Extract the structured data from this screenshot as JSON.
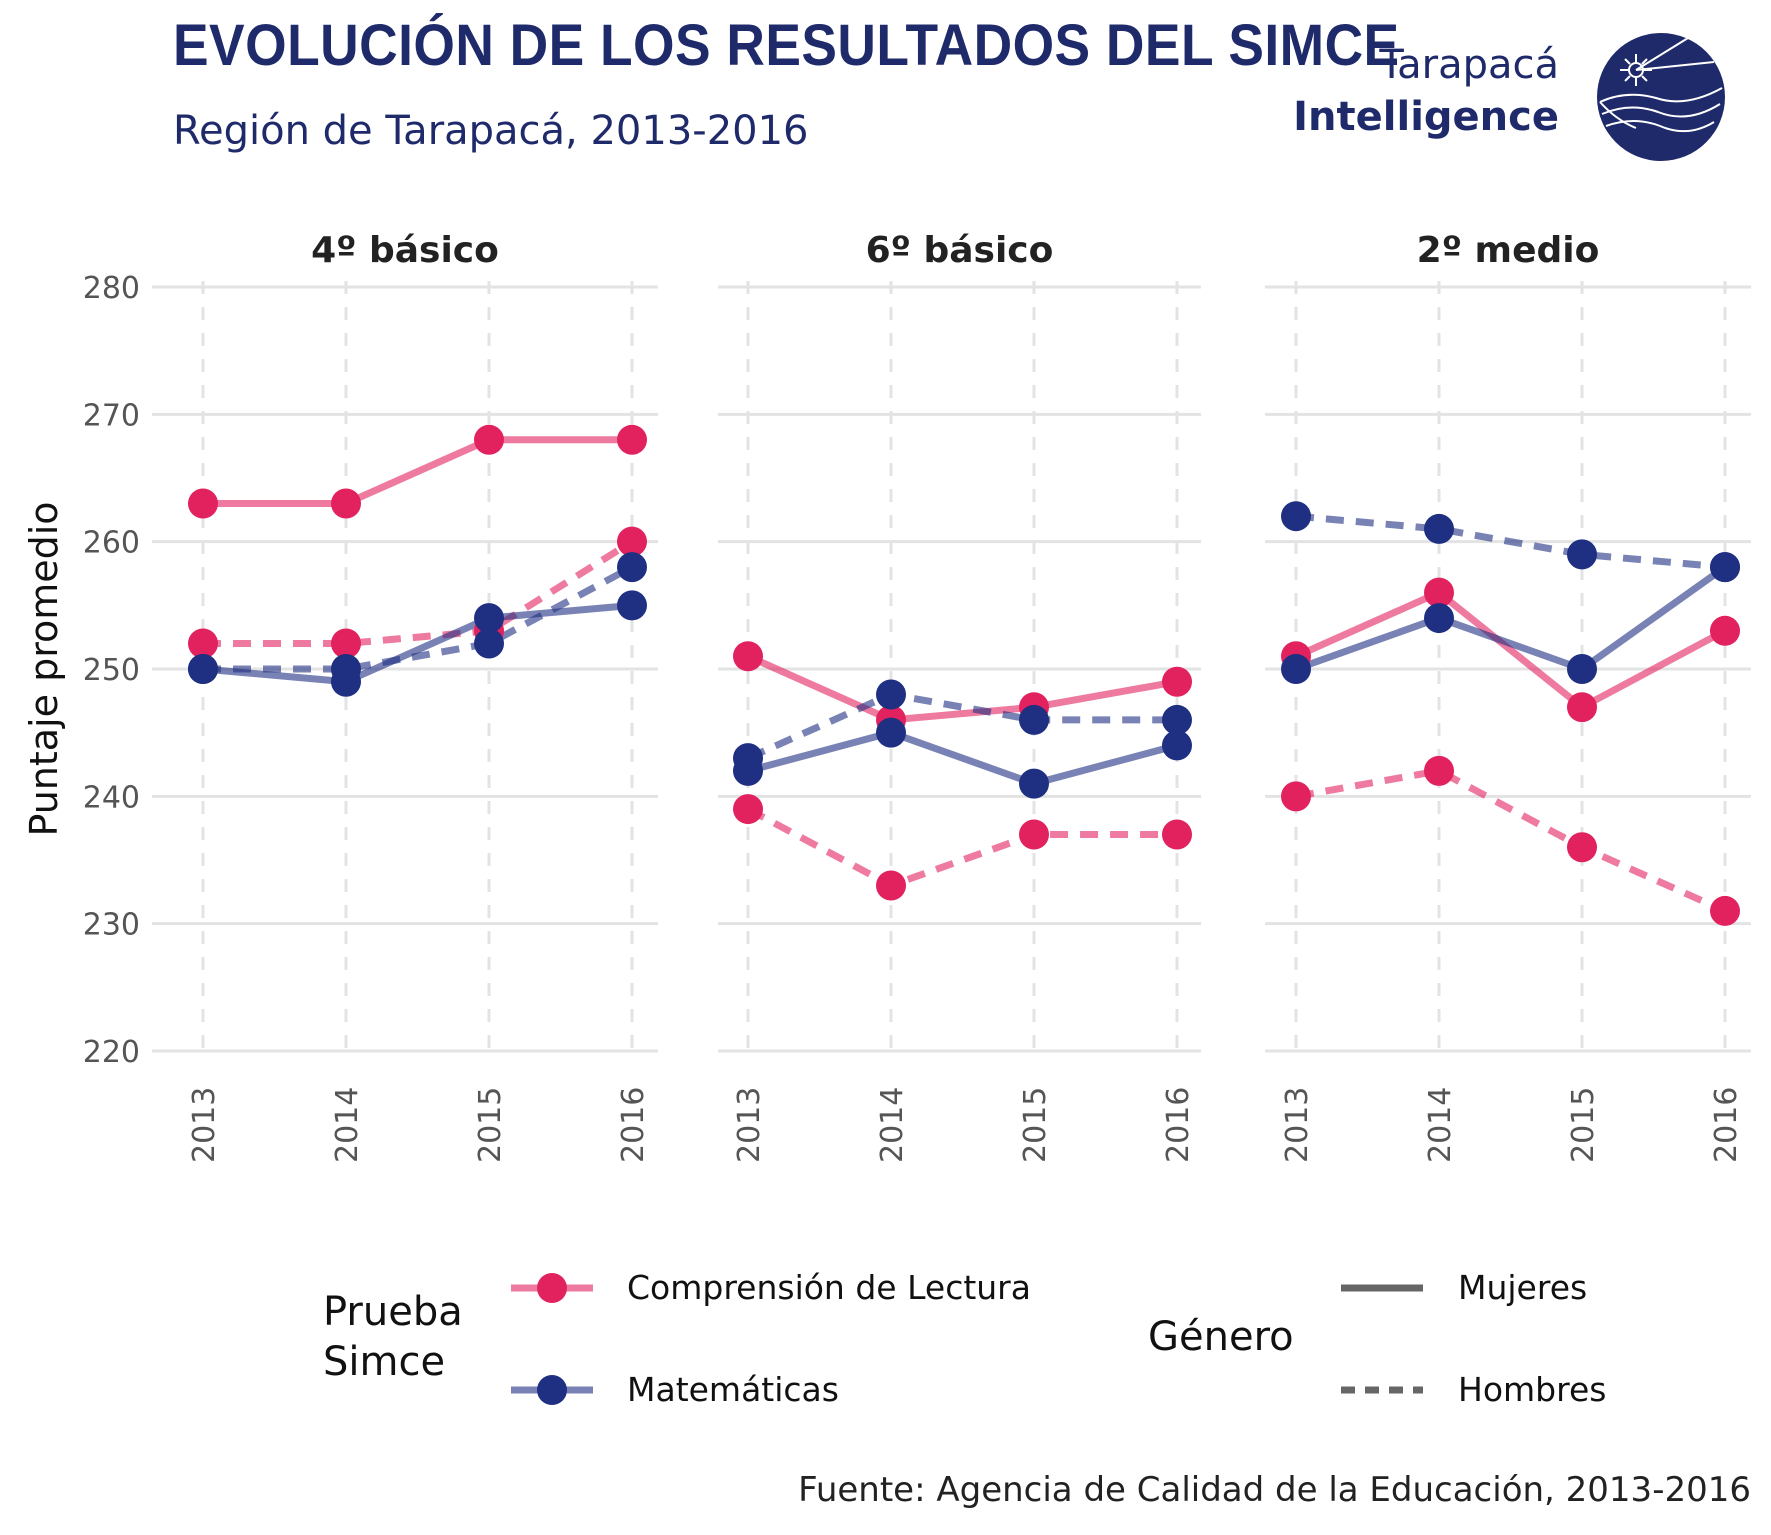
{
  "header": {
    "title": "EVOLUCIÓN DE LOS RESULTADOS DEL SIMCE",
    "subtitle": "Región de Tarapacá, 2013-2016"
  },
  "brand": {
    "line1": "Tarapacá",
    "line2": "Intelligence"
  },
  "caption": "Fuente: Agencia de Calidad de la Educación, 2013-2016",
  "colors": {
    "lectura": "#e2215f",
    "matematicas": "#1f2f82",
    "brand": "#1f2a6b"
  },
  "chart_data": {
    "type": "line",
    "ylabel": "Puntaje promedio",
    "ylim": [
      220,
      280
    ],
    "yticks": [
      "220",
      "230",
      "240",
      "250",
      "260",
      "270",
      "280"
    ],
    "x": [
      "2013",
      "2014",
      "2015",
      "2016"
    ],
    "grid": true,
    "legend": {
      "position": "bottom",
      "prueba_title": "Prueba\nSimce",
      "prueba_items": [
        "Comprensión de Lectura",
        "Matemáticas"
      ],
      "genero_title": "Género",
      "genero_items": [
        "Mujeres",
        "Hombres"
      ]
    },
    "facets": [
      {
        "title": "4º básico",
        "series": [
          {
            "prueba": "Comprensión de Lectura",
            "genero": "Mujeres",
            "values": [
              263,
              263,
              268,
              268
            ]
          },
          {
            "prueba": "Comprensión de Lectura",
            "genero": "Hombres",
            "values": [
              252,
              252,
              253,
              260
            ]
          },
          {
            "prueba": "Matemáticas",
            "genero": "Mujeres",
            "values": [
              250,
              249,
              254,
              255
            ]
          },
          {
            "prueba": "Matemáticas",
            "genero": "Hombres",
            "values": [
              250,
              250,
              252,
              258
            ]
          }
        ]
      },
      {
        "title": "6º básico",
        "series": [
          {
            "prueba": "Comprensión de Lectura",
            "genero": "Mujeres",
            "values": [
              251,
              246,
              247,
              249
            ]
          },
          {
            "prueba": "Comprensión de Lectura",
            "genero": "Hombres",
            "values": [
              239,
              233,
              237,
              237
            ]
          },
          {
            "prueba": "Matemáticas",
            "genero": "Mujeres",
            "values": [
              242,
              245,
              241,
              244
            ]
          },
          {
            "prueba": "Matemáticas",
            "genero": "Hombres",
            "values": [
              243,
              248,
              246,
              246
            ]
          }
        ]
      },
      {
        "title": "2º medio",
        "series": [
          {
            "prueba": "Comprensión de Lectura",
            "genero": "Mujeres",
            "values": [
              251,
              256,
              247,
              253
            ]
          },
          {
            "prueba": "Comprensión de Lectura",
            "genero": "Hombres",
            "values": [
              240,
              242,
              236,
              231
            ]
          },
          {
            "prueba": "Matemáticas",
            "genero": "Mujeres",
            "values": [
              250,
              254,
              250,
              258
            ]
          },
          {
            "prueba": "Matemáticas",
            "genero": "Hombres",
            "values": [
              262,
              261,
              259,
              258
            ]
          }
        ]
      }
    ]
  }
}
